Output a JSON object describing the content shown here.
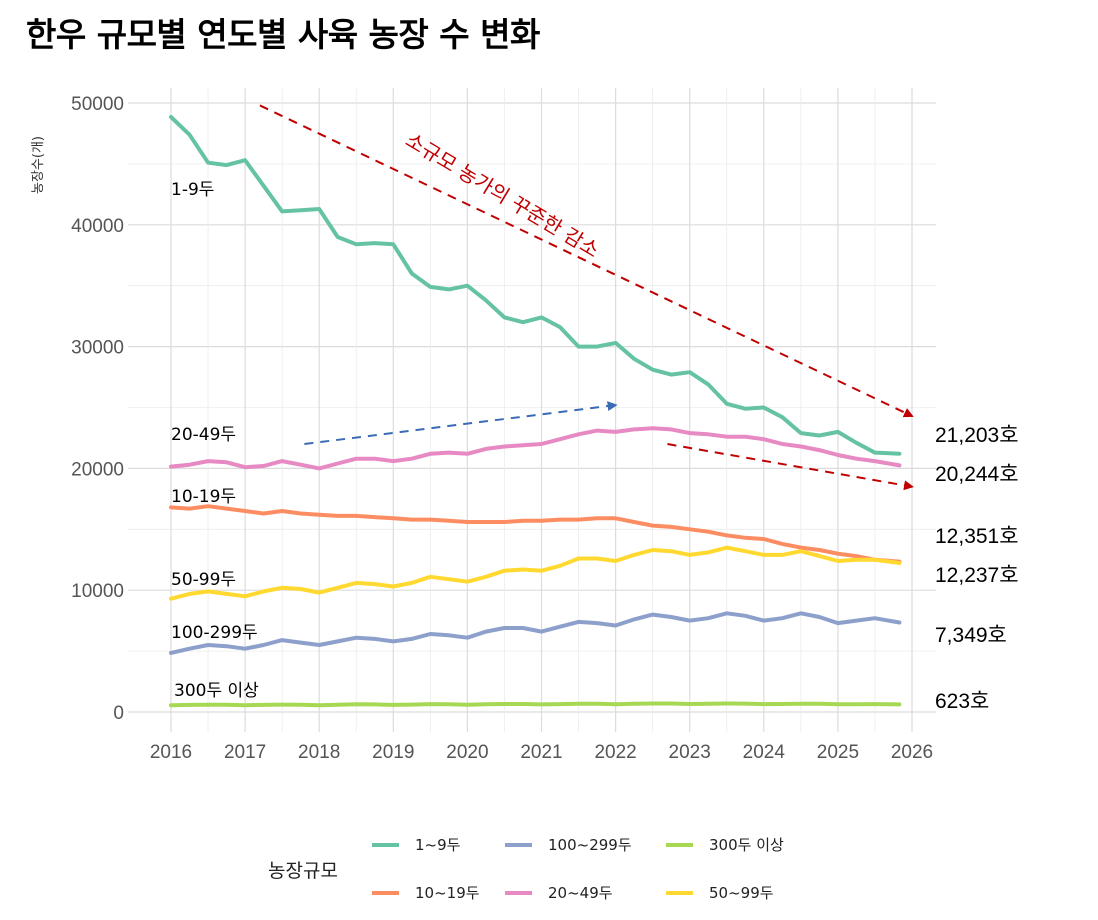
{
  "chart_data": {
    "type": "line",
    "title": "한우 규모별 연도별 사육 농장 수 변화",
    "xlabel": "",
    "ylabel": "농장수(개)",
    "xlim": [
      2016,
      2026
    ],
    "ylim": [
      0,
      50000
    ],
    "x_ticks": [
      "2016",
      "2017",
      "2018",
      "2019",
      "2020",
      "2021",
      "2022",
      "2023",
      "2024",
      "2025",
      "2026"
    ],
    "y_ticks": [
      "0",
      "10000",
      "20000",
      "30000",
      "40000",
      "50000"
    ],
    "grid": true,
    "legend_title": "농장규모",
    "legend_position": "bottom",
    "x": [
      2016.0,
      2016.25,
      2016.5,
      2016.75,
      2017.0,
      2017.25,
      2017.5,
      2017.75,
      2018.0,
      2018.25,
      2018.5,
      2018.75,
      2019.0,
      2019.25,
      2019.5,
      2019.75,
      2020.0,
      2020.25,
      2020.5,
      2020.75,
      2021.0,
      2021.25,
      2021.5,
      2021.75,
      2022.0,
      2022.25,
      2022.5,
      2022.75,
      2023.0,
      2023.25,
      2023.5,
      2023.75,
      2024.0,
      2024.25,
      2024.5,
      2024.75,
      2025.0,
      2025.25,
      2025.5,
      2025.83
    ],
    "series": [
      {
        "name": "1~9두",
        "label": "1-9두",
        "color": "#66c2a5",
        "end_label": "21,203호",
        "values": [
          48850,
          47400,
          45100,
          44900,
          45300,
          43200,
          41100,
          41200,
          41300,
          39000,
          38400,
          38500,
          38400,
          36000,
          34900,
          34700,
          35000,
          33800,
          32400,
          32000,
          32400,
          31600,
          30000,
          30000,
          30300,
          29000,
          28100,
          27700,
          27900,
          26900,
          25300,
          24900,
          25000,
          24200,
          22900,
          22700,
          23000,
          22100,
          21300,
          21203
        ]
      },
      {
        "name": "10~19두",
        "label": "10-19두",
        "color": "#fc8d62",
        "end_label": "12,351호",
        "values": [
          16800,
          16700,
          16900,
          16700,
          16500,
          16300,
          16500,
          16300,
          16200,
          16100,
          16100,
          16000,
          15900,
          15800,
          15800,
          15700,
          15600,
          15600,
          15600,
          15700,
          15700,
          15800,
          15800,
          15900,
          15900,
          15600,
          15300,
          15200,
          15000,
          14800,
          14500,
          14300,
          14200,
          13800,
          13500,
          13300,
          13000,
          12800,
          12500,
          12351
        ]
      },
      {
        "name": "20~49두",
        "label": "20-49두",
        "color": "#e78ac3",
        "end_label": "20,244호",
        "values": [
          20150,
          20300,
          20600,
          20500,
          20100,
          20200,
          20600,
          20300,
          20000,
          20400,
          20800,
          20800,
          20600,
          20800,
          21200,
          21300,
          21200,
          21600,
          21800,
          21900,
          22000,
          22400,
          22800,
          23100,
          23000,
          23200,
          23300,
          23200,
          22900,
          22800,
          22600,
          22600,
          22400,
          22000,
          21800,
          21500,
          21100,
          20800,
          20600,
          20244
        ]
      },
      {
        "name": "50~99두",
        "label": "50-99두",
        "color": "#ffd92f",
        "end_label": "12,237호",
        "values": [
          9300,
          9700,
          9900,
          9700,
          9500,
          9900,
          10200,
          10100,
          9800,
          10200,
          10600,
          10500,
          10300,
          10600,
          11100,
          10900,
          10700,
          11100,
          11600,
          11700,
          11600,
          12000,
          12600,
          12600,
          12400,
          12900,
          13300,
          13200,
          12900,
          13100,
          13500,
          13200,
          12900,
          12900,
          13200,
          12800,
          12400,
          12500,
          12500,
          12237
        ]
      },
      {
        "name": "100~299두",
        "label": "100-299두",
        "color": "#8da0cb",
        "end_label": "7,349호",
        "values": [
          4850,
          5200,
          5500,
          5400,
          5200,
          5500,
          5900,
          5700,
          5500,
          5800,
          6100,
          6000,
          5800,
          6000,
          6400,
          6300,
          6100,
          6600,
          6900,
          6900,
          6600,
          7000,
          7400,
          7300,
          7100,
          7600,
          8000,
          7800,
          7500,
          7700,
          8100,
          7900,
          7500,
          7700,
          8100,
          7800,
          7300,
          7500,
          7700,
          7349
        ]
      },
      {
        "name": "300두 이상",
        "label": "300두 이상",
        "color": "#a6d854",
        "end_label": "623호",
        "values": [
          550,
          580,
          600,
          600,
          560,
          580,
          610,
          600,
          560,
          600,
          630,
          620,
          580,
          610,
          650,
          640,
          600,
          640,
          660,
          660,
          620,
          650,
          680,
          670,
          640,
          670,
          700,
          700,
          660,
          680,
          700,
          690,
          650,
          660,
          680,
          670,
          630,
          640,
          650,
          623
        ]
      }
    ],
    "annotations": [
      {
        "text": "소규모 농가의 꾸준한 감소",
        "color": "#c00000"
      },
      {
        "type": "arrow",
        "color": "#c00000",
        "from": [
          2017.2,
          49800
        ],
        "to": [
          2026.0,
          24300
        ]
      },
      {
        "type": "arrow",
        "color": "#3a6bb5",
        "from": [
          2017.8,
          22000
        ],
        "to": [
          2022.0,
          25200
        ]
      },
      {
        "type": "arrow",
        "color": "#c00000",
        "from": [
          2022.7,
          22000
        ],
        "to": [
          2026.0,
          18500
        ]
      }
    ],
    "legend_order": [
      0,
      4,
      5,
      1,
      2,
      3
    ]
  }
}
